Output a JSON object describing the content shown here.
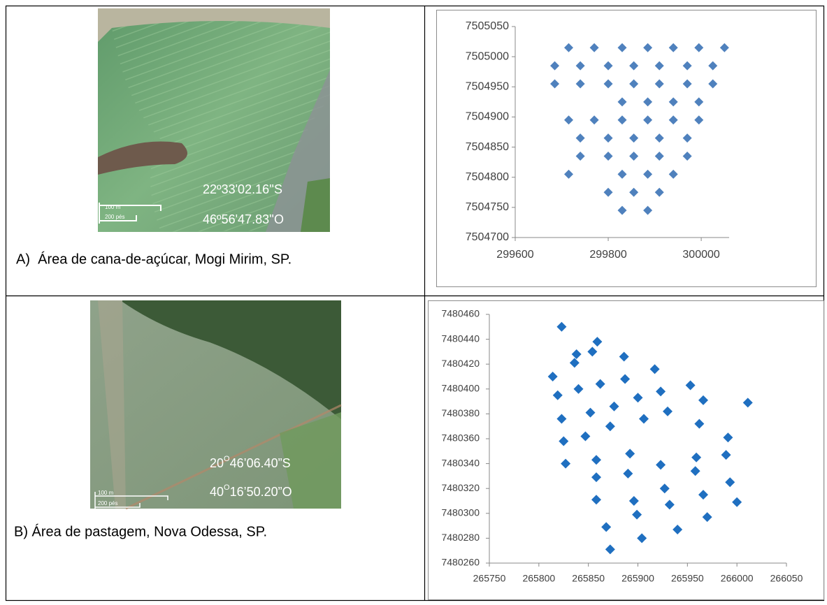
{
  "panels": [
    {
      "caption": "A)  Área de cana-de-açúcar, Mogi Mirim, SP.",
      "latitude": "22º33'02.16''S",
      "longitude": "46º56'47.83''O",
      "scale_m": "100 m",
      "scale_ft": "200 pés"
    },
    {
      "caption": "B) Área de pastagem, Nova Odessa, SP.",
      "latitude": {
        "deg": "20",
        "sym": "O",
        "rest": "46’06.40”S"
      },
      "longitude": {
        "deg": "40",
        "sym": "O",
        "rest": "16’50.20”O"
      },
      "scale_m": "100 m",
      "scale_ft": "200 pés"
    }
  ],
  "chart_data": [
    {
      "type": "scatter",
      "color": "#4f81bd",
      "marker": "diamond",
      "x": [
        299715,
        299770,
        299830,
        299885,
        299940,
        299995,
        300050,
        299685,
        299740,
        299800,
        299855,
        299910,
        299970,
        300025,
        299685,
        299740,
        299800,
        299855,
        299910,
        299970,
        300025,
        299830,
        299885,
        299940,
        299995,
        299715,
        299770,
        299830,
        299885,
        299940,
        299995,
        299740,
        299800,
        299855,
        299910,
        299970,
        299740,
        299800,
        299855,
        299910,
        299970,
        299715,
        299830,
        299885,
        299940,
        299800,
        299855,
        299910,
        299830,
        299885
      ],
      "values": [
        7505015,
        7505015,
        7505015,
        7505015,
        7505015,
        7505015,
        7505015,
        7504985,
        7504985,
        7504985,
        7504985,
        7504985,
        7504985,
        7504985,
        7504955,
        7504955,
        7504955,
        7504955,
        7504955,
        7504955,
        7504955,
        7504925,
        7504925,
        7504925,
        7504925,
        7504895,
        7504895,
        7504895,
        7504895,
        7504895,
        7504895,
        7504865,
        7504865,
        7504865,
        7504865,
        7504865,
        7504835,
        7504835,
        7504835,
        7504835,
        7504835,
        7504805,
        7504805,
        7504805,
        7504805,
        7504775,
        7504775,
        7504775,
        7504745,
        7504745
      ],
      "xlim": [
        299600,
        300060
      ],
      "ylim": [
        7504700,
        7505050
      ],
      "xticks": [
        299600,
        299800,
        300000
      ],
      "yticks": [
        7504700,
        7504750,
        7504800,
        7504850,
        7504900,
        7504950,
        7505000,
        7505050
      ]
    },
    {
      "type": "scatter",
      "color": "#1f6fc0",
      "marker": "diamond",
      "x": [
        265823,
        265859,
        265854,
        265838,
        265836,
        265886,
        265917,
        265814,
        265887,
        265862,
        265840,
        265819,
        265923,
        265953,
        265966,
        266011,
        265876,
        265900,
        265852,
        265930,
        265823,
        265872,
        265906,
        265962,
        265847,
        265825,
        265991,
        265892,
        265827,
        265858,
        265923,
        265959,
        265989,
        265890,
        265858,
        265927,
        265993,
        265958,
        265858,
        265896,
        266000,
        265932,
        265966,
        265899,
        265970,
        265868,
        265940,
        265904,
        265872
      ],
      "values": [
        7480450,
        7480438,
        7480430,
        7480428,
        7480421,
        7480426,
        7480416,
        7480410,
        7480408,
        7480404,
        7480400,
        7480395,
        7480398,
        7480403,
        7480391,
        7480389,
        7480386,
        7480393,
        7480381,
        7480382,
        7480376,
        7480370,
        7480376,
        7480372,
        7480362,
        7480358,
        7480361,
        7480348,
        7480340,
        7480343,
        7480339,
        7480345,
        7480347,
        7480332,
        7480329,
        7480320,
        7480325,
        7480334,
        7480311,
        7480310,
        7480309,
        7480307,
        7480315,
        7480299,
        7480297,
        7480289,
        7480287,
        7480280,
        7480271
      ],
      "xlim": [
        265750,
        266050
      ],
      "ylim": [
        7480260,
        7480460
      ],
      "xticks": [
        265750,
        265800,
        265850,
        265900,
        265950,
        266000,
        266050
      ],
      "yticks": [
        7480260,
        7480280,
        7480300,
        7480320,
        7480340,
        7480360,
        7480380,
        7480400,
        7480420,
        7480440,
        7480460
      ]
    }
  ]
}
